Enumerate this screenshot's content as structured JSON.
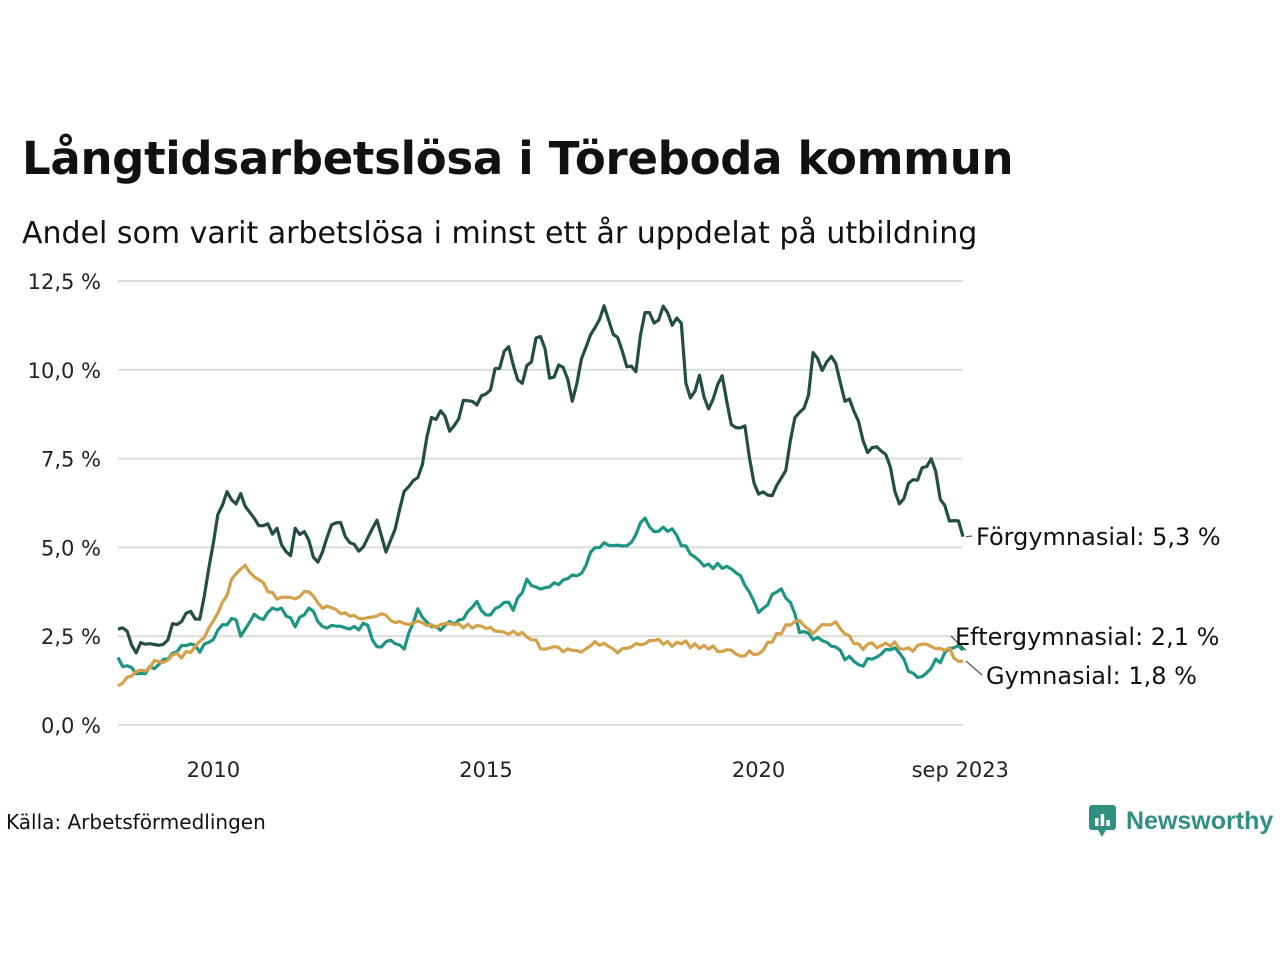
{
  "title": "Långtidsarbetslösa i Töreboda kommun",
  "subtitle": "Andel som varit arbetslösa i minst ett år uppdelat på utbildning",
  "source": "Källa: Arbetsförmedlingen",
  "brand": "Newsworthy",
  "chart_data": {
    "type": "line",
    "title": "Långtidsarbetslösa i Töreboda kommun",
    "subtitle": "Andel som varit arbetslösa i minst ett år uppdelat på utbildning",
    "xlabel": "",
    "ylabel": "",
    "x_start": 2008.25,
    "x_end": 2023.75,
    "x_step": 0.0833,
    "ylim": [
      0,
      12.5
    ],
    "grid": true,
    "yticks": [
      {
        "value": 0,
        "label": "0,0 %"
      },
      {
        "value": 2.5,
        "label": "2,5 %"
      },
      {
        "value": 5,
        "label": "5,0 %"
      },
      {
        "value": 7.5,
        "label": "7,5 %"
      },
      {
        "value": 10,
        "label": "10,0 %"
      },
      {
        "value": 12.5,
        "label": "12,5 %"
      }
    ],
    "xticks": [
      {
        "value": 2010,
        "label": "2010"
      },
      {
        "value": 2015,
        "label": "2015"
      },
      {
        "value": 2020,
        "label": "2020"
      },
      {
        "value": 2023.7,
        "label": "sep 2023"
      }
    ],
    "series": [
      {
        "name": "Förgymnasial",
        "label": "Förgymnasial: 5,3 %",
        "color": "#234d47",
        "anchor": [
          [
            2008.25,
            2.7
          ],
          [
            2008.5,
            2.4
          ],
          [
            2008.6,
            2.0
          ],
          [
            2008.75,
            2.4
          ],
          [
            2009.0,
            2.2
          ],
          [
            2009.2,
            2.6
          ],
          [
            2009.4,
            3.0
          ],
          [
            2009.6,
            3.3
          ],
          [
            2009.75,
            2.9
          ],
          [
            2010.0,
            5.3
          ],
          [
            2010.2,
            6.5
          ],
          [
            2010.4,
            6.3
          ],
          [
            2010.5,
            6.5
          ],
          [
            2010.7,
            5.8
          ],
          [
            2011.0,
            5.7
          ],
          [
            2011.2,
            5.3
          ],
          [
            2011.4,
            4.6
          ],
          [
            2011.5,
            5.4
          ],
          [
            2011.7,
            5.5
          ],
          [
            2011.9,
            4.4
          ],
          [
            2012.2,
            5.9
          ],
          [
            2012.4,
            5.5
          ],
          [
            2012.7,
            4.7
          ],
          [
            2013.0,
            5.7
          ],
          [
            2013.2,
            4.7
          ],
          [
            2013.5,
            6.7
          ],
          [
            2013.75,
            6.9
          ],
          [
            2014.0,
            8.5
          ],
          [
            2014.2,
            8.9
          ],
          [
            2014.4,
            8.2
          ],
          [
            2014.6,
            9.1
          ],
          [
            2015.0,
            9.2
          ],
          [
            2015.2,
            10.0
          ],
          [
            2015.4,
            10.7
          ],
          [
            2015.6,
            9.5
          ],
          [
            2015.8,
            10.2
          ],
          [
            2016.0,
            11.1
          ],
          [
            2016.2,
            9.5
          ],
          [
            2016.4,
            10.3
          ],
          [
            2016.6,
            9.2
          ],
          [
            2016.8,
            10.7
          ],
          [
            2017.0,
            11.3
          ],
          [
            2017.2,
            11.8
          ],
          [
            2017.4,
            10.8
          ],
          [
            2017.6,
            10.2
          ],
          [
            2017.75,
            10.1
          ],
          [
            2017.9,
            11.7
          ],
          [
            2018.1,
            11.2
          ],
          [
            2018.3,
            11.9
          ],
          [
            2018.45,
            10.9
          ],
          [
            2018.55,
            11.9
          ],
          [
            2018.7,
            9.1
          ],
          [
            2018.9,
            9.8
          ],
          [
            2019.1,
            9.0
          ],
          [
            2019.3,
            9.9
          ],
          [
            2019.5,
            8.5
          ],
          [
            2019.75,
            8.3
          ],
          [
            2019.9,
            6.9
          ],
          [
            2020.1,
            6.4
          ],
          [
            2020.3,
            6.5
          ],
          [
            2020.5,
            7.2
          ],
          [
            2020.7,
            8.8
          ],
          [
            2020.9,
            9.0
          ],
          [
            2021.0,
            10.4
          ],
          [
            2021.2,
            9.9
          ],
          [
            2021.35,
            10.4
          ],
          [
            2021.6,
            9.2
          ],
          [
            2021.8,
            8.7
          ],
          [
            2022.0,
            7.6
          ],
          [
            2022.2,
            7.9
          ],
          [
            2022.4,
            7.3
          ],
          [
            2022.6,
            6.2
          ],
          [
            2022.8,
            6.8
          ],
          [
            2023.0,
            7.2
          ],
          [
            2023.2,
            7.7
          ],
          [
            2023.3,
            6.6
          ],
          [
            2023.5,
            5.6
          ],
          [
            2023.6,
            5.8
          ],
          [
            2023.75,
            5.3
          ]
        ]
      },
      {
        "name": "Eftergymnasial",
        "label": "Eftergymnasial: 2,1 %",
        "color": "#1d9584",
        "anchor": [
          [
            2008.25,
            1.9
          ],
          [
            2008.4,
            1.6
          ],
          [
            2008.7,
            1.5
          ],
          [
            2009.0,
            1.7
          ],
          [
            2009.3,
            2.1
          ],
          [
            2009.5,
            2.3
          ],
          [
            2009.75,
            2.1
          ],
          [
            2010.0,
            2.5
          ],
          [
            2010.2,
            2.9
          ],
          [
            2010.4,
            3.0
          ],
          [
            2010.5,
            2.5
          ],
          [
            2010.7,
            3.0
          ],
          [
            2011.0,
            3.1
          ],
          [
            2011.2,
            3.4
          ],
          [
            2011.5,
            2.8
          ],
          [
            2011.8,
            3.3
          ],
          [
            2012.0,
            2.8
          ],
          [
            2012.3,
            2.8
          ],
          [
            2012.6,
            2.7
          ],
          [
            2012.8,
            2.9
          ],
          [
            2013.0,
            2.2
          ],
          [
            2013.3,
            2.4
          ],
          [
            2013.5,
            2.2
          ],
          [
            2013.75,
            3.2
          ],
          [
            2014.0,
            2.7
          ],
          [
            2014.3,
            2.8
          ],
          [
            2014.6,
            3.0
          ],
          [
            2014.8,
            3.5
          ],
          [
            2015.0,
            3.0
          ],
          [
            2015.3,
            3.5
          ],
          [
            2015.5,
            3.3
          ],
          [
            2015.75,
            4.1
          ],
          [
            2016.0,
            3.8
          ],
          [
            2016.2,
            3.9
          ],
          [
            2016.5,
            4.1
          ],
          [
            2016.75,
            4.3
          ],
          [
            2017.0,
            5.0
          ],
          [
            2017.3,
            5.1
          ],
          [
            2017.6,
            5.0
          ],
          [
            2017.9,
            5.8
          ],
          [
            2018.1,
            5.5
          ],
          [
            2018.3,
            5.6
          ],
          [
            2018.5,
            5.3
          ],
          [
            2018.8,
            4.8
          ],
          [
            2019.0,
            4.5
          ],
          [
            2019.3,
            4.5
          ],
          [
            2019.6,
            4.3
          ],
          [
            2019.8,
            3.8
          ],
          [
            2020.0,
            3.1
          ],
          [
            2020.2,
            3.5
          ],
          [
            2020.4,
            3.9
          ],
          [
            2020.6,
            3.4
          ],
          [
            2020.75,
            2.7
          ],
          [
            2021.0,
            2.5
          ],
          [
            2021.3,
            2.3
          ],
          [
            2021.6,
            1.9
          ],
          [
            2021.9,
            1.7
          ],
          [
            2022.2,
            2.0
          ],
          [
            2022.5,
            2.2
          ],
          [
            2022.8,
            1.4
          ],
          [
            2023.0,
            1.3
          ],
          [
            2023.2,
            1.7
          ],
          [
            2023.4,
            1.9
          ],
          [
            2023.55,
            2.3
          ],
          [
            2023.75,
            2.1
          ]
        ]
      },
      {
        "name": "Gymnasial",
        "label": "Gymnasial: 1,8 %",
        "color": "#d4a04a",
        "anchor": [
          [
            2008.25,
            1.1
          ],
          [
            2008.5,
            1.4
          ],
          [
            2008.75,
            1.6
          ],
          [
            2009.0,
            1.8
          ],
          [
            2009.25,
            1.9
          ],
          [
            2009.5,
            2.0
          ],
          [
            2009.75,
            2.3
          ],
          [
            2010.0,
            3.0
          ],
          [
            2010.2,
            3.5
          ],
          [
            2010.4,
            4.3
          ],
          [
            2010.6,
            4.5
          ],
          [
            2010.75,
            4.2
          ],
          [
            2011.0,
            3.8
          ],
          [
            2011.2,
            3.6
          ],
          [
            2011.5,
            3.5
          ],
          [
            2011.75,
            3.8
          ],
          [
            2012.0,
            3.3
          ],
          [
            2012.3,
            3.2
          ],
          [
            2012.6,
            3.0
          ],
          [
            2013.0,
            3.1
          ],
          [
            2013.5,
            2.9
          ],
          [
            2014.0,
            2.8
          ],
          [
            2014.5,
            2.8
          ],
          [
            2015.0,
            2.8
          ],
          [
            2015.5,
            2.6
          ],
          [
            2015.8,
            2.5
          ],
          [
            2016.0,
            2.2
          ],
          [
            2016.4,
            2.1
          ],
          [
            2016.8,
            2.1
          ],
          [
            2017.0,
            2.3
          ],
          [
            2017.4,
            2.1
          ],
          [
            2017.8,
            2.3
          ],
          [
            2018.0,
            2.4
          ],
          [
            2018.3,
            2.3
          ],
          [
            2018.6,
            2.3
          ],
          [
            2019.0,
            2.2
          ],
          [
            2019.3,
            2.1
          ],
          [
            2019.6,
            2.0
          ],
          [
            2020.0,
            2.0
          ],
          [
            2020.2,
            2.3
          ],
          [
            2020.4,
            2.6
          ],
          [
            2020.6,
            2.9
          ],
          [
            2020.75,
            2.9
          ],
          [
            2021.0,
            2.6
          ],
          [
            2021.2,
            2.9
          ],
          [
            2021.4,
            2.9
          ],
          [
            2021.6,
            2.6
          ],
          [
            2021.8,
            2.2
          ],
          [
            2022.0,
            2.2
          ],
          [
            2022.3,
            2.3
          ],
          [
            2022.5,
            2.3
          ],
          [
            2022.7,
            2.1
          ],
          [
            2023.0,
            2.2
          ],
          [
            2023.2,
            2.2
          ],
          [
            2023.4,
            2.0
          ],
          [
            2023.5,
            2.1
          ],
          [
            2023.6,
            1.8
          ],
          [
            2023.75,
            1.8
          ]
        ]
      }
    ]
  }
}
